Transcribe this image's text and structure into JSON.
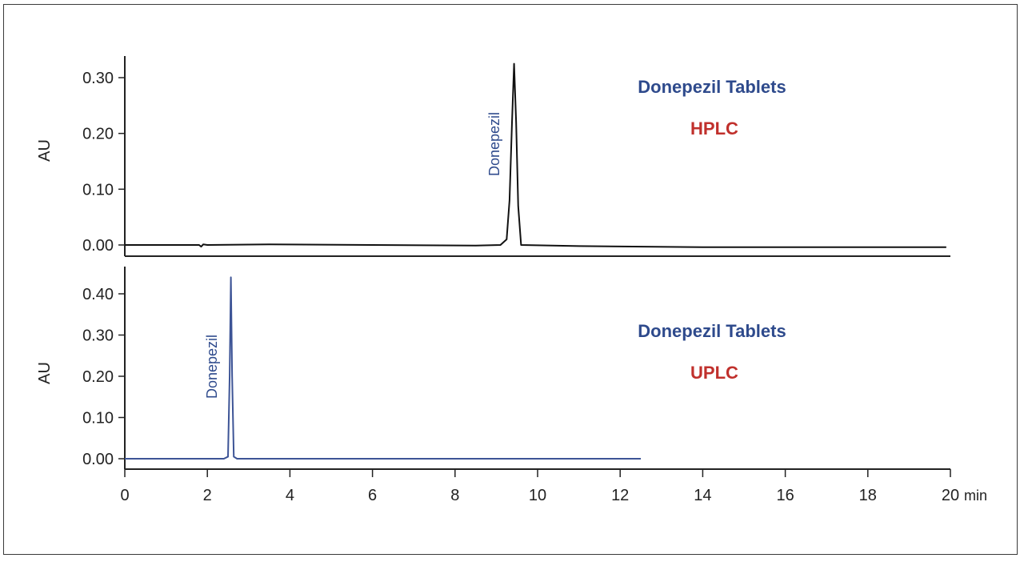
{
  "colors": {
    "frame": "#3a3a3a",
    "axis": "#222222",
    "hplc_trace": "#111111",
    "uplc_trace": "#3d5496",
    "title_blue": "#2e4a8c",
    "method_red": "#c0302c"
  },
  "chart_data": [
    {
      "type": "line",
      "title": "Donepezil Tablets",
      "subtitle": "HPLC",
      "ylabel": "AU",
      "xlabel": "",
      "xunit": "min",
      "xlim": [
        0,
        20
      ],
      "ylim": [
        -0.02,
        0.34
      ],
      "yticks": [
        0.0,
        0.1,
        0.2,
        0.3
      ],
      "ytick_labels": [
        "0.00",
        "0.10",
        "0.20",
        "0.30"
      ],
      "grid": false,
      "series": [
        {
          "color": "#111111",
          "points": [
            [
              0,
              0.0
            ],
            [
              1.8,
              0.0
            ],
            [
              1.85,
              -0.003
            ],
            [
              1.9,
              0.001
            ],
            [
              2.0,
              0.0
            ],
            [
              3.5,
              0.001
            ],
            [
              6,
              0.0
            ],
            [
              8.5,
              -0.001
            ],
            [
              9.1,
              0.0
            ],
            [
              9.25,
              0.01
            ],
            [
              9.32,
              0.08
            ],
            [
              9.38,
              0.22
            ],
            [
              9.43,
              0.325
            ],
            [
              9.48,
              0.22
            ],
            [
              9.53,
              0.07
            ],
            [
              9.6,
              0.0
            ],
            [
              11,
              -0.002
            ],
            [
              14,
              -0.004
            ],
            [
              18,
              -0.004
            ],
            [
              19.9,
              -0.004
            ]
          ]
        }
      ],
      "annotations": [
        {
          "text": "Donepezil",
          "x": 9.43
        }
      ]
    },
    {
      "type": "line",
      "title": "Donepezil Tablets",
      "subtitle": "UPLC",
      "ylabel": "AU",
      "xlabel": "",
      "xunit": "min",
      "xlim": [
        0,
        20
      ],
      "ylim": [
        -0.02,
        0.46
      ],
      "yticks": [
        0.0,
        0.1,
        0.2,
        0.3,
        0.4
      ],
      "ytick_labels": [
        "0.00",
        "0.10",
        "0.20",
        "0.30",
        "0.40"
      ],
      "xticks": [
        0,
        2,
        4,
        6,
        8,
        10,
        12,
        14,
        16,
        18,
        20
      ],
      "xtick_labels": [
        "0",
        "2",
        "4",
        "6",
        "8",
        "10",
        "12",
        "14",
        "16",
        "18",
        "20"
      ],
      "grid": false,
      "series": [
        {
          "color": "#3d5496",
          "points": [
            [
              0,
              0.0
            ],
            [
              2.4,
              0.0
            ],
            [
              2.5,
              0.005
            ],
            [
              2.54,
              0.2
            ],
            [
              2.57,
              0.44
            ],
            [
              2.6,
              0.2
            ],
            [
              2.64,
              0.005
            ],
            [
              2.72,
              0.0
            ],
            [
              6,
              0.0
            ],
            [
              10,
              0.0
            ],
            [
              12.5,
              0.0
            ]
          ]
        }
      ],
      "annotations": [
        {
          "text": "Donepezil",
          "x": 2.57
        }
      ]
    }
  ]
}
